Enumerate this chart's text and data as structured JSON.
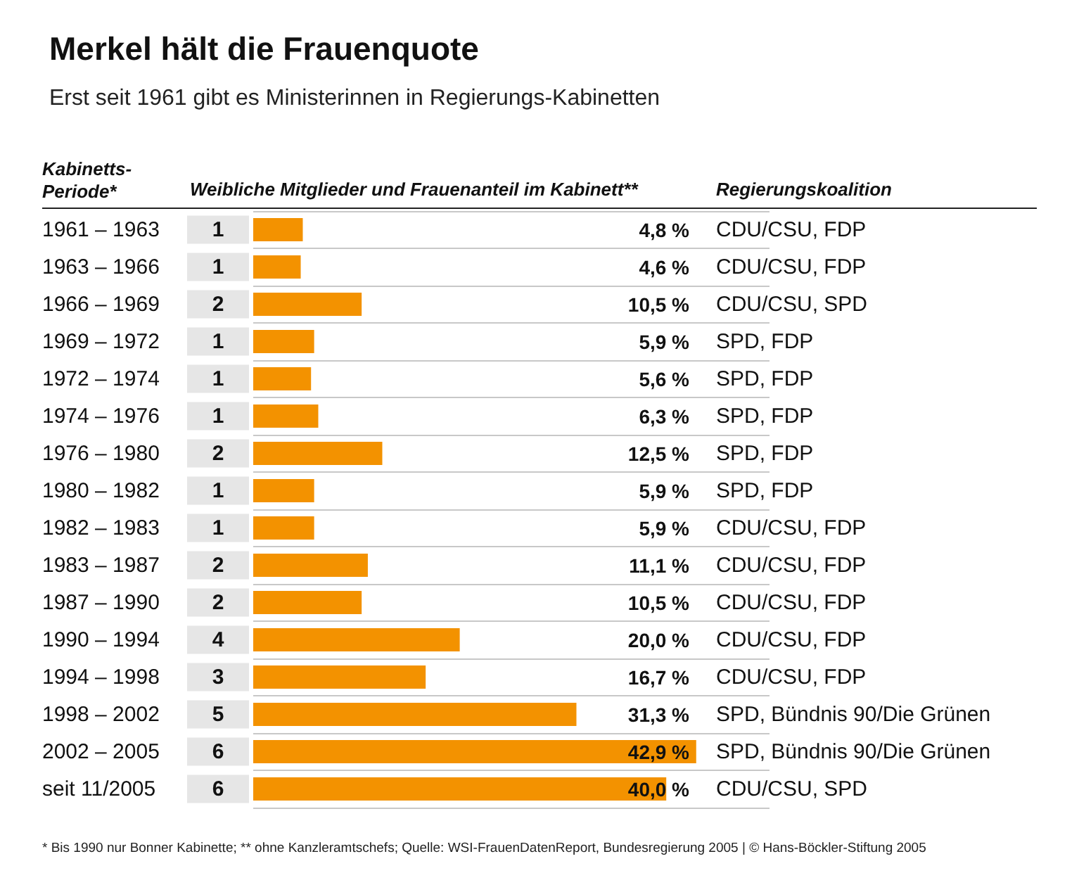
{
  "chart_data": {
    "type": "bar",
    "orientation": "horizontal",
    "title": "Merkel hält die Frauenquote",
    "subtitle": "Erst seit 1961 gibt es Ministerinnen in Regierungs-Kabinetten",
    "ylabel": "Kabinetts-\nPeriode*",
    "xlabel": "Weibliche Mitglieder und Frauenanteil im Kabinett**",
    "y2label": "Regierungskoalition",
    "categories": [
      "1961 – 1963",
      "1963 – 1966",
      "1966 – 1969",
      "1969 – 1972",
      "1972 – 1974",
      "1974 – 1976",
      "1976 – 1980",
      "1980 – 1982",
      "1982 – 1983",
      "1983 – 1987",
      "1987 – 1990",
      "1990 – 1994",
      "1994 – 1998",
      "1998 – 2002",
      "2002 – 2005",
      "seit 11/2005"
    ],
    "values": [
      4.8,
      4.6,
      10.5,
      5.9,
      5.6,
      6.3,
      12.5,
      5.9,
      5.9,
      11.1,
      10.5,
      20.0,
      16.7,
      31.3,
      42.9,
      40.0
    ],
    "value_labels": [
      "4,8 %",
      "4,6 %",
      "10,5 %",
      "5,9 %",
      "5,6 %",
      "6,3 %",
      "12,5 %",
      "5,9 %",
      "5,9 %",
      "11,1 %",
      "10,5 %",
      "20,0 %",
      "16,7 %",
      "31,3 %",
      "42,9 %",
      "40,0 %"
    ],
    "color": "#f39200",
    "grid": "y",
    "annotations": [
      "1",
      "1",
      "2",
      "1",
      "1",
      "1",
      "2",
      "1",
      "1",
      "2",
      "2",
      "4",
      "3",
      "5",
      "6",
      "6",
      "CDU/CSU, FDP",
      "CDU/CSU, FDP",
      "CDU/CSU, SPD",
      "SPD, FDP",
      "SPD, FDP",
      "SPD, FDP",
      "SPD, FDP",
      "SPD, FDP",
      "CDU/CSU, FDP",
      "CDU/CSU, FDP",
      "CDU/CSU, FDP",
      "CDU/CSU, FDP",
      "CDU/CSU, FDP",
      "SPD, Bündnis 90/Die Grünen",
      "SPD, Bündnis 90/Die Grünen",
      "CDU/CSU, SPD",
      "* Bis 1990 nur Bonner Kabinette; ** ohne Kanzleramtschefs; Quelle: WSI-FrauenDatenReport, Bundesregierung 2005 | © Hans-Böckler-Stiftung 2005"
    ]
  }
}
